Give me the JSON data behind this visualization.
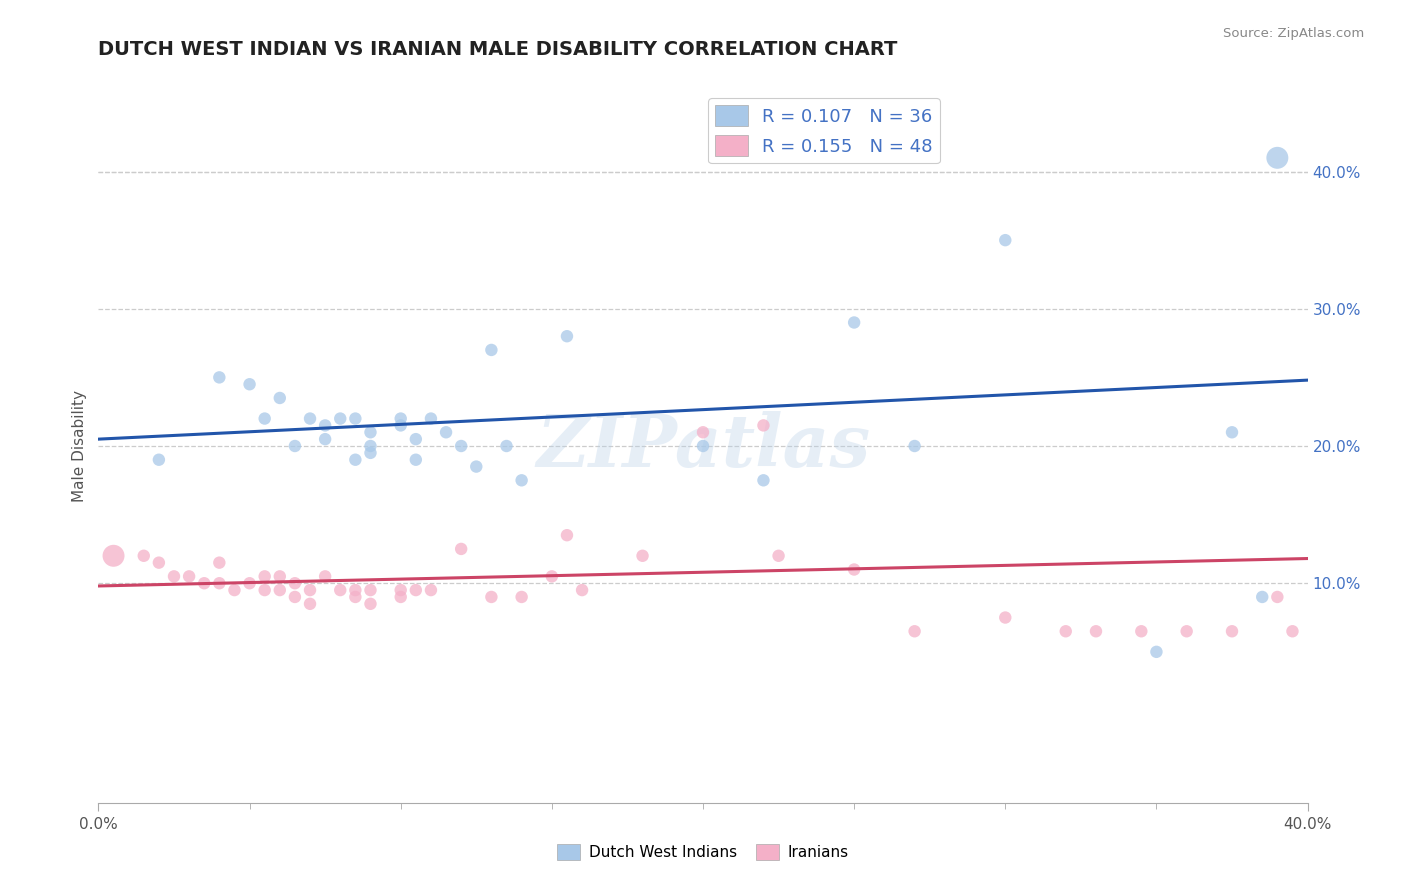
{
  "title": "DUTCH WEST INDIAN VS IRANIAN MALE DISABILITY CORRELATION CHART",
  "source": "Source: ZipAtlas.com",
  "ylabel": "Male Disability",
  "xlim": [
    0.0,
    0.4
  ],
  "ylim": [
    -0.06,
    0.46
  ],
  "xticks_major": [
    0.0,
    0.4
  ],
  "xticks_minor": [
    0.05,
    0.1,
    0.15,
    0.2,
    0.25,
    0.3,
    0.35
  ],
  "yticks_right": [
    0.1,
    0.2,
    0.3,
    0.4
  ],
  "ytick_labels_right": [
    "10.0%",
    "20.0%",
    "30.0%",
    "40.0%"
  ],
  "blue_R": 0.107,
  "blue_N": 36,
  "pink_R": 0.155,
  "pink_N": 48,
  "blue_color": "#a8c8e8",
  "pink_color": "#f4b0c8",
  "blue_line_color": "#2255aa",
  "pink_line_color": "#cc4466",
  "legend_label_blue": "Dutch West Indians",
  "legend_label_pink": "Iranians",
  "watermark": "ZIPatlas",
  "background_color": "#ffffff",
  "grid_color": "#cccccc",
  "title_color": "#222222",
  "right_axis_color": "#4472c4",
  "blue_dots_x": [
    0.02,
    0.04,
    0.05,
    0.055,
    0.06,
    0.065,
    0.07,
    0.075,
    0.075,
    0.08,
    0.085,
    0.085,
    0.09,
    0.09,
    0.09,
    0.1,
    0.1,
    0.105,
    0.105,
    0.11,
    0.115,
    0.12,
    0.125,
    0.13,
    0.135,
    0.14,
    0.155,
    0.2,
    0.22,
    0.25,
    0.27,
    0.3,
    0.35,
    0.375,
    0.385,
    0.39
  ],
  "blue_dots_y": [
    0.19,
    0.25,
    0.245,
    0.22,
    0.235,
    0.2,
    0.22,
    0.215,
    0.205,
    0.22,
    0.22,
    0.19,
    0.2,
    0.21,
    0.195,
    0.215,
    0.22,
    0.205,
    0.19,
    0.22,
    0.21,
    0.2,
    0.185,
    0.27,
    0.2,
    0.175,
    0.28,
    0.2,
    0.175,
    0.29,
    0.2,
    0.35,
    0.05,
    0.21,
    0.09,
    0.41
  ],
  "blue_dots_size": [
    80,
    80,
    80,
    80,
    80,
    80,
    80,
    80,
    80,
    80,
    80,
    80,
    80,
    80,
    80,
    80,
    80,
    80,
    80,
    80,
    80,
    80,
    80,
    80,
    80,
    80,
    80,
    80,
    80,
    80,
    80,
    80,
    80,
    80,
    80,
    250
  ],
  "pink_dots_x": [
    0.005,
    0.015,
    0.02,
    0.025,
    0.03,
    0.035,
    0.04,
    0.04,
    0.045,
    0.05,
    0.055,
    0.055,
    0.06,
    0.06,
    0.065,
    0.065,
    0.07,
    0.07,
    0.075,
    0.08,
    0.085,
    0.085,
    0.09,
    0.09,
    0.1,
    0.1,
    0.105,
    0.11,
    0.12,
    0.13,
    0.14,
    0.15,
    0.155,
    0.16,
    0.18,
    0.2,
    0.22,
    0.225,
    0.25,
    0.27,
    0.3,
    0.32,
    0.33,
    0.345,
    0.36,
    0.375,
    0.39,
    0.395
  ],
  "pink_dots_y": [
    0.12,
    0.12,
    0.115,
    0.105,
    0.105,
    0.1,
    0.1,
    0.115,
    0.095,
    0.1,
    0.105,
    0.095,
    0.095,
    0.105,
    0.1,
    0.09,
    0.095,
    0.085,
    0.105,
    0.095,
    0.09,
    0.095,
    0.095,
    0.085,
    0.095,
    0.09,
    0.095,
    0.095,
    0.125,
    0.09,
    0.09,
    0.105,
    0.135,
    0.095,
    0.12,
    0.21,
    0.215,
    0.12,
    0.11,
    0.065,
    0.075,
    0.065,
    0.065,
    0.065,
    0.065,
    0.065,
    0.09,
    0.065
  ],
  "pink_dots_size": [
    250,
    80,
    80,
    80,
    80,
    80,
    80,
    80,
    80,
    80,
    80,
    80,
    80,
    80,
    80,
    80,
    80,
    80,
    80,
    80,
    80,
    80,
    80,
    80,
    80,
    80,
    80,
    80,
    80,
    80,
    80,
    80,
    80,
    80,
    80,
    80,
    80,
    80,
    80,
    80,
    80,
    80,
    80,
    80,
    80,
    80,
    80,
    80
  ],
  "blue_line_x": [
    0.0,
    0.4
  ],
  "blue_line_y": [
    0.205,
    0.248
  ],
  "pink_line_x": [
    0.0,
    0.4
  ],
  "pink_line_y": [
    0.098,
    0.118
  ]
}
